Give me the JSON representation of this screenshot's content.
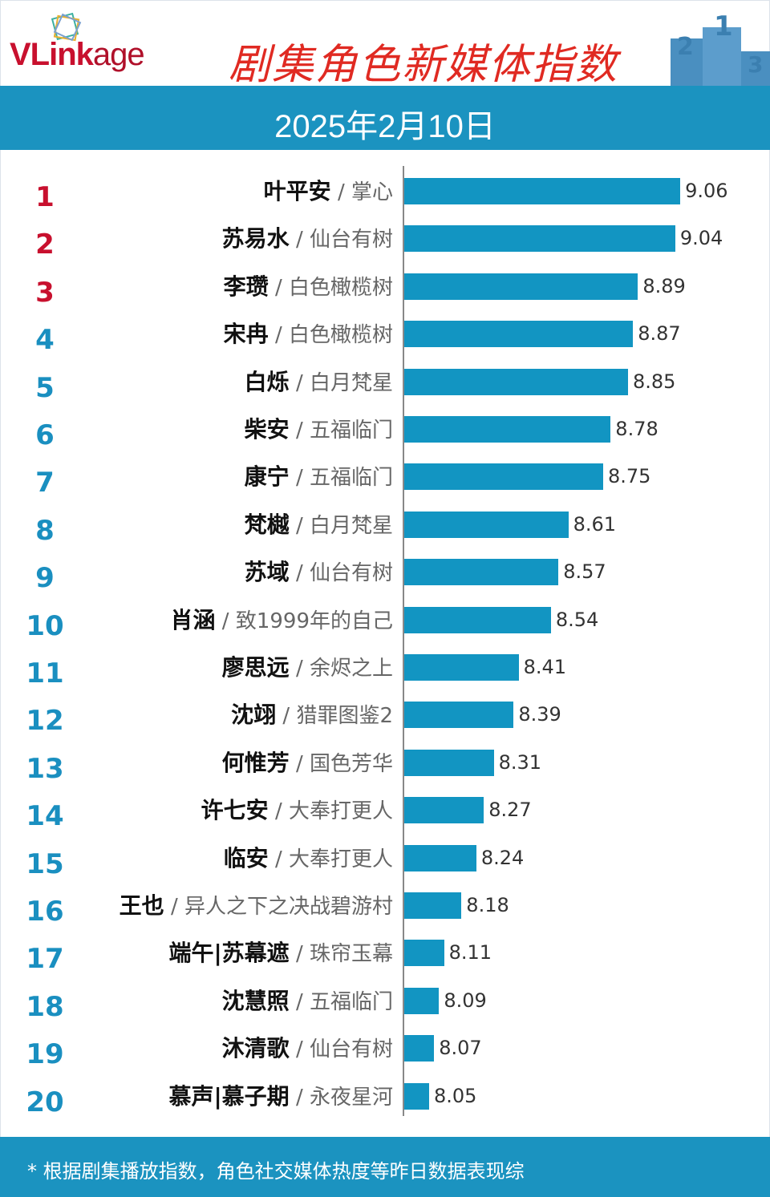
{
  "header": {
    "logo": "VLinkage",
    "title": "剧集角色新媒体指数",
    "date": "2025年2月10日"
  },
  "footer": {
    "note": "* 根据剧集播放指数，角色社交媒体热度等昨日数据表现综"
  },
  "colors": {
    "bar": "#1295c2",
    "band": "#1b93c0",
    "top_rank": "#c8102e",
    "rank": "#1a8fc0",
    "title": "#e02a22"
  },
  "chart_data": {
    "type": "bar",
    "orientation": "horizontal",
    "title": "剧集角色新媒体指数",
    "xlim": [
      7.95,
      9.25
    ],
    "grid": false,
    "data_labels": true,
    "rows": [
      {
        "rank": "1",
        "name": "叶平安",
        "show": "掌心",
        "value": 9.06
      },
      {
        "rank": "2",
        "name": "苏易水",
        "show": "仙台有树",
        "value": 9.04
      },
      {
        "rank": "3",
        "name": "李瓒",
        "show": "白色橄榄树",
        "value": 8.89
      },
      {
        "rank": "4",
        "name": "宋冉",
        "show": "白色橄榄树",
        "value": 8.87
      },
      {
        "rank": "5",
        "name": "白烁",
        "show": "白月梵星",
        "value": 8.85
      },
      {
        "rank": "6",
        "name": "柴安",
        "show": "五福临门",
        "value": 8.78
      },
      {
        "rank": "7",
        "name": "康宁",
        "show": "五福临门",
        "value": 8.75
      },
      {
        "rank": "8",
        "name": "梵樾",
        "show": "白月梵星",
        "value": 8.61
      },
      {
        "rank": "9",
        "name": "苏域",
        "show": "仙台有树",
        "value": 8.57
      },
      {
        "rank": "10",
        "name": "肖涵",
        "show": "致1999年的自己",
        "value": 8.54
      },
      {
        "rank": "11",
        "name": "廖思远",
        "show": "余烬之上",
        "value": 8.41
      },
      {
        "rank": "12",
        "name": "沈翊",
        "show": "猎罪图鉴2",
        "value": 8.39
      },
      {
        "rank": "13",
        "name": "何惟芳",
        "show": "国色芳华",
        "value": 8.31
      },
      {
        "rank": "14",
        "name": "许七安",
        "show": "大奉打更人",
        "value": 8.27
      },
      {
        "rank": "15",
        "name": "临安",
        "show": "大奉打更人",
        "value": 8.24
      },
      {
        "rank": "16",
        "name": "王也",
        "show": "异人之下之决战碧游村",
        "value": 8.18
      },
      {
        "rank": "17",
        "name": "端午|苏幕遮",
        "show": "珠帘玉幕",
        "value": 8.11
      },
      {
        "rank": "18",
        "name": "沈慧照",
        "show": "五福临门",
        "value": 8.09
      },
      {
        "rank": "19",
        "name": "沐清歌",
        "show": "仙台有树",
        "value": 8.07
      },
      {
        "rank": "20",
        "name": "慕声|慕子期",
        "show": "永夜星河",
        "value": 8.05
      }
    ]
  }
}
